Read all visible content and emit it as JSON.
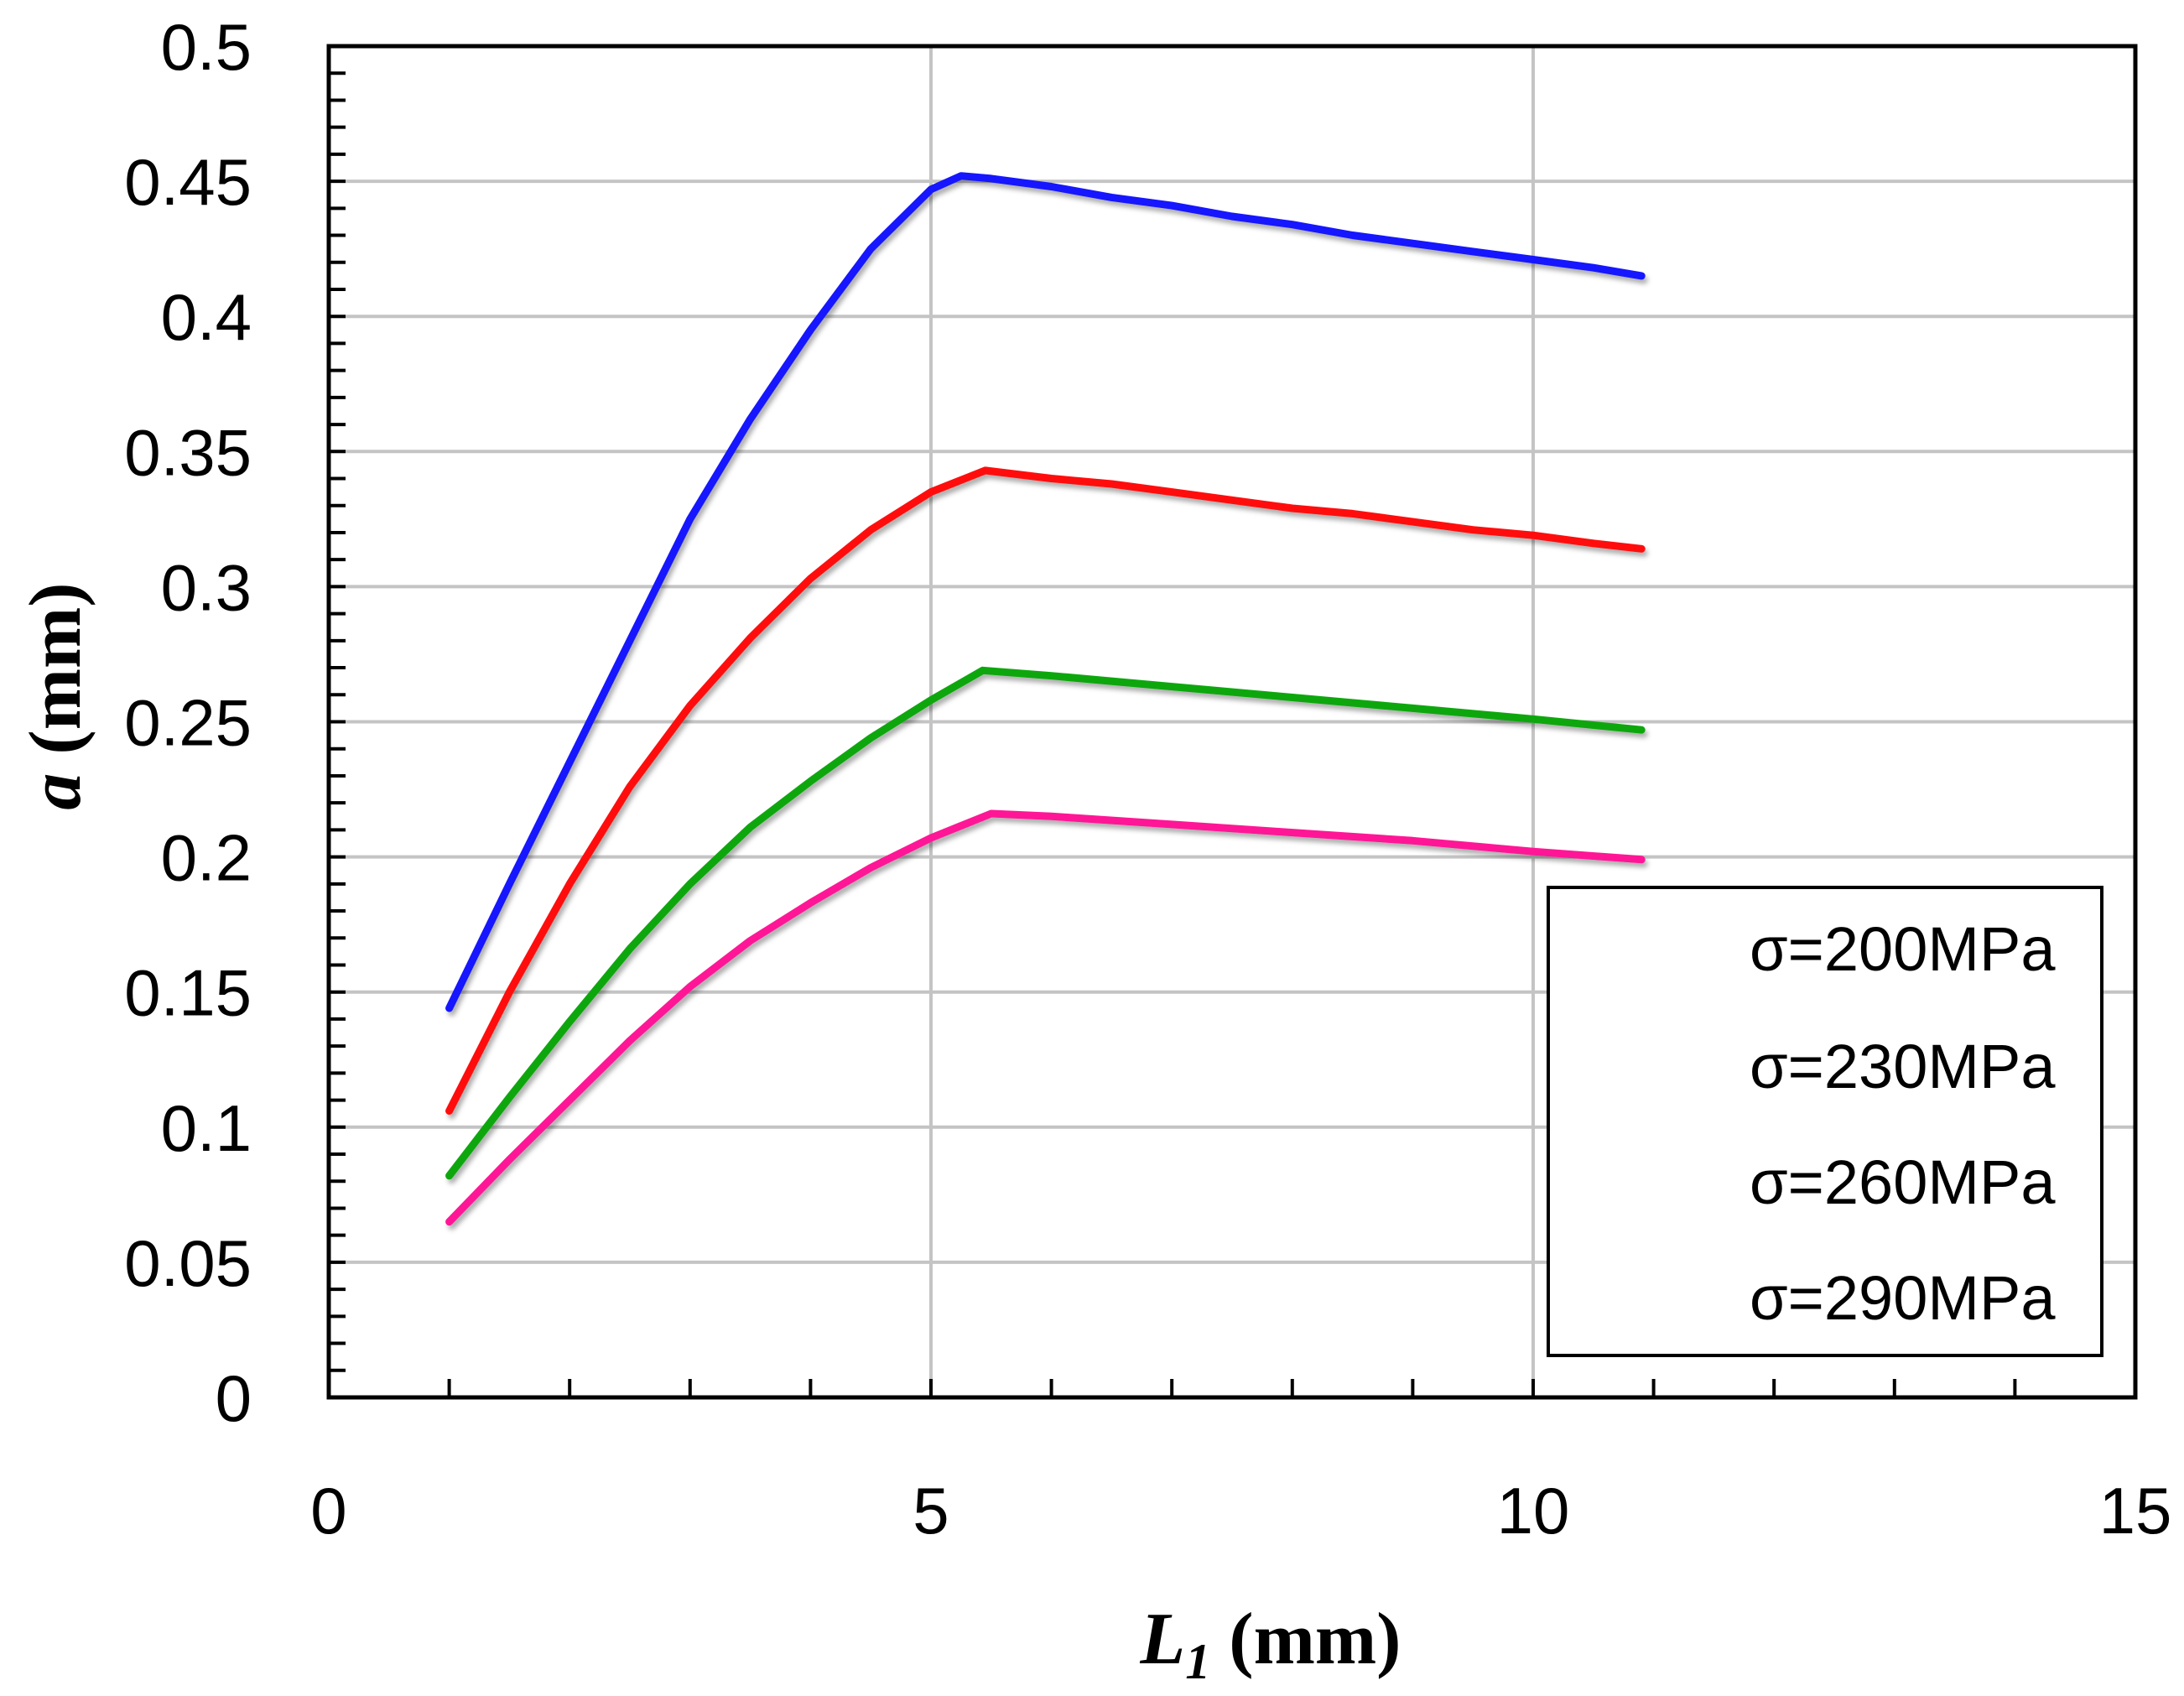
{
  "chart_data": {
    "type": "line",
    "title": "",
    "xlabel": {
      "var": "L",
      "sub": "1",
      "unit": "(mm)"
    },
    "ylabel": {
      "var": "a",
      "unit": "(mm)"
    },
    "xlim": [
      0,
      15
    ],
    "ylim": [
      0,
      0.5
    ],
    "xticks": [
      0,
      5,
      10,
      15
    ],
    "xtick_labels": [
      "0",
      "5",
      "10",
      "15"
    ],
    "yticks": [
      0,
      0.05,
      0.1,
      0.15,
      0.2,
      0.25,
      0.3,
      0.35,
      0.4,
      0.45,
      0.5
    ],
    "ytick_labels": [
      "0",
      "0.05",
      "0.1",
      "0.15",
      "0.2",
      "0.25",
      "0.3",
      "0.35",
      "0.4",
      "0.45",
      "0.5"
    ],
    "x_minor_step": 1,
    "y_minor_step": 0.01,
    "grid": true,
    "legend": "lower-right",
    "series": [
      {
        "name": "σ=200MPa",
        "color": "#1414ff",
        "x": [
          1,
          1.5,
          2,
          2.5,
          3,
          3.5,
          4,
          4.5,
          5,
          5.25,
          5.5,
          6,
          6.5,
          7,
          7.5,
          8,
          8.5,
          9,
          9.5,
          10,
          10.5,
          10.9
        ],
        "y": [
          0.144,
          0.19,
          0.235,
          0.28,
          0.325,
          0.362,
          0.395,
          0.425,
          0.447,
          0.452,
          0.451,
          0.448,
          0.444,
          0.441,
          0.437,
          0.434,
          0.43,
          0.427,
          0.424,
          0.421,
          0.418,
          0.415
        ]
      },
      {
        "name": "σ=230MPa",
        "color": "#ff0a0a",
        "x": [
          1,
          1.5,
          2,
          2.5,
          3,
          3.5,
          4,
          4.5,
          5,
          5.45,
          6,
          6.5,
          7,
          7.5,
          8,
          8.5,
          9,
          9.5,
          10,
          10.5,
          10.9
        ],
        "y": [
          0.106,
          0.15,
          0.19,
          0.226,
          0.256,
          0.281,
          0.303,
          0.321,
          0.335,
          0.343,
          0.34,
          0.338,
          0.335,
          0.332,
          0.329,
          0.327,
          0.324,
          0.321,
          0.319,
          0.316,
          0.314
        ]
      },
      {
        "name": "σ=260MPa",
        "color": "#0aa70a",
        "x": [
          1,
          1.5,
          2,
          2.5,
          3,
          3.5,
          4,
          4.5,
          5,
          5.43,
          6,
          7,
          8,
          9,
          10,
          10.9
        ],
        "y": [
          0.082,
          0.111,
          0.139,
          0.166,
          0.19,
          0.211,
          0.228,
          0.244,
          0.258,
          0.269,
          0.267,
          0.263,
          0.259,
          0.255,
          0.251,
          0.247
        ]
      },
      {
        "name": "σ=290MPa",
        "color": "#ff1496",
        "x": [
          1,
          1.5,
          2,
          2.5,
          3,
          3.5,
          4,
          4.5,
          5,
          5.5,
          6,
          7,
          8,
          9,
          10,
          10.9
        ],
        "y": [
          0.065,
          0.088,
          0.11,
          0.132,
          0.152,
          0.169,
          0.183,
          0.196,
          0.207,
          0.216,
          0.215,
          0.212,
          0.209,
          0.206,
          0.202,
          0.199
        ]
      }
    ]
  }
}
